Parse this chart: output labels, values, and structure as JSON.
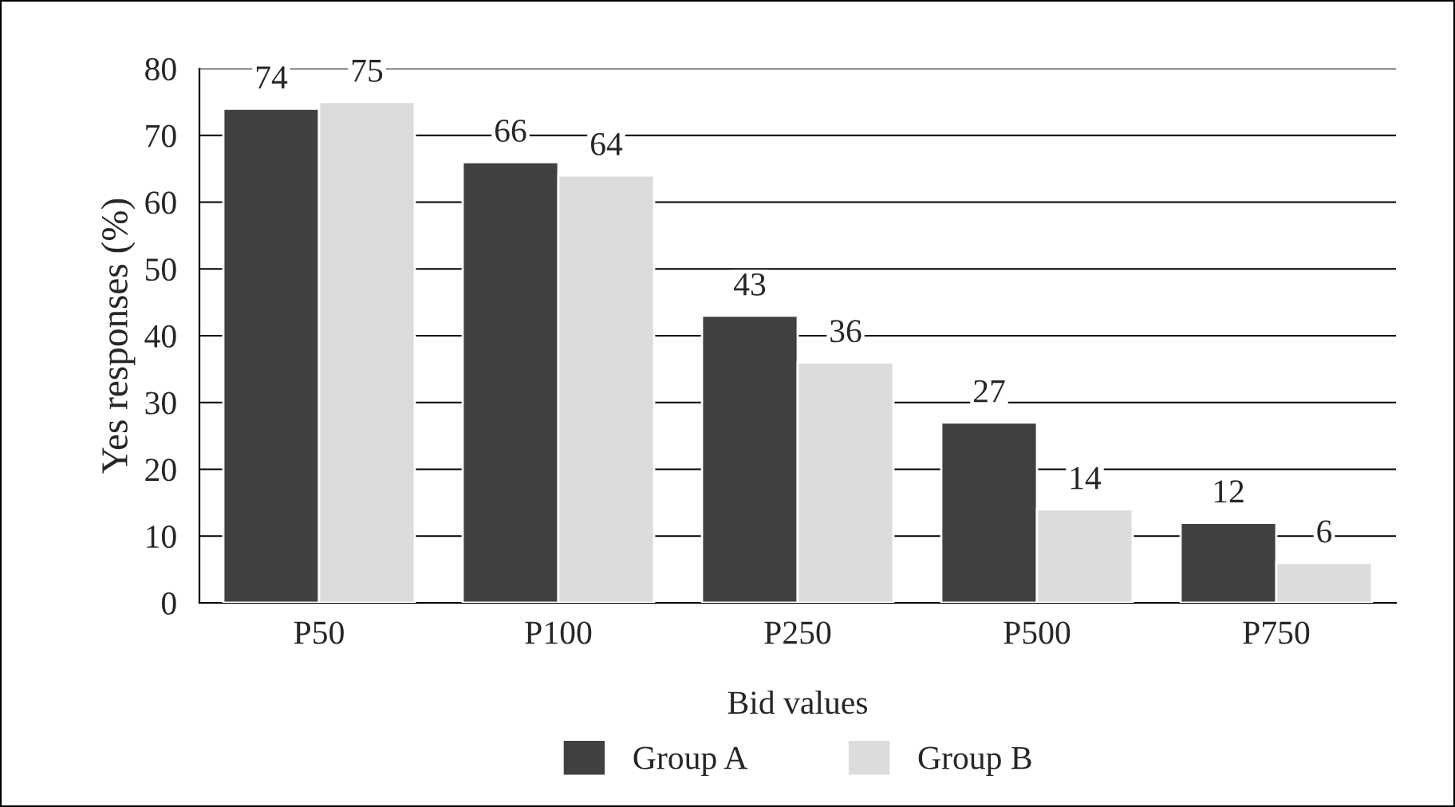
{
  "chart_data": {
    "type": "bar",
    "xlabel": "Bid values",
    "ylabel": "Yes responses (%)",
    "categories": [
      "P50",
      "P100",
      "P250",
      "P500",
      "P750"
    ],
    "series": [
      {
        "name": "Group A",
        "color": "#404040",
        "values": [
          74,
          66,
          43,
          27,
          12
        ]
      },
      {
        "name": "Group B",
        "color": "#dcdcdc",
        "values": [
          75,
          64,
          36,
          14,
          6
        ]
      }
    ],
    "ylim": [
      0,
      80
    ],
    "yticks": [
      0,
      10,
      20,
      30,
      40,
      50,
      60,
      70,
      80
    ],
    "grid": "y",
    "legend": "bottom",
    "data_labels": true
  }
}
